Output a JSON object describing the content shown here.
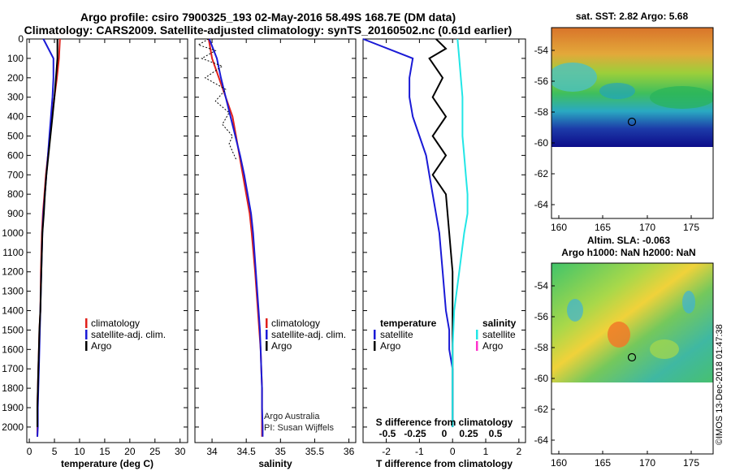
{
  "header": {
    "title_line1": "Argo profile: csiro 7900325_193 02-May-2016 58.49S 168.7E (DM data)",
    "title_line2": "Climatology: CARS2009. Satellite-adjusted climatology: synTS_20160502.nc (0.61d earlier)"
  },
  "colors": {
    "climatology": "#e0201b",
    "satellite": "#1a1ad6",
    "argo": "#000000",
    "salinity_satellite": "#22e6e6",
    "salinity_argo_legend": "#ff33cc"
  },
  "chart_data": [
    {
      "type": "line",
      "panel": "temperature",
      "xlabel": "temperature (deg C)",
      "xlim": [
        -0.5,
        31.5
      ],
      "xticks": [
        0,
        5,
        10,
        15,
        20,
        25,
        30
      ],
      "ylim": [
        0,
        2080
      ],
      "yticks": [
        0,
        100,
        200,
        300,
        400,
        500,
        600,
        700,
        800,
        900,
        1000,
        1100,
        1200,
        1300,
        1400,
        1500,
        1600,
        1700,
        1800,
        1900,
        2000
      ],
      "yreversed": true,
      "legend": [
        "climatology",
        "satellite-adj. clim.",
        "Argo"
      ],
      "series": [
        {
          "name": "climatology",
          "x": [
            6.1,
            5.9,
            5.5,
            5.0,
            4.5,
            4.1,
            3.7,
            3.3,
            3.0,
            2.7,
            2.5,
            2.3,
            2.2,
            2.0,
            1.9,
            1.8,
            1.7,
            1.6,
            1.6,
            1.6
          ],
          "y": [
            0,
            100,
            200,
            300,
            400,
            500,
            600,
            700,
            800,
            900,
            1000,
            1200,
            1400,
            1500,
            1600,
            1700,
            1800,
            1900,
            2000,
            2050
          ]
        },
        {
          "name": "satellite-adj. clim.",
          "x": [
            2.8,
            4.8,
            4.8,
            4.6,
            4.3,
            4.0,
            3.7,
            3.4,
            3.1,
            2.8,
            2.6,
            2.4,
            2.2,
            2.1,
            2.0,
            1.9,
            1.8,
            1.7,
            1.7,
            1.6
          ],
          "y": [
            0,
            100,
            200,
            300,
            400,
            500,
            600,
            700,
            800,
            900,
            1000,
            1200,
            1400,
            1500,
            1600,
            1700,
            1800,
            1900,
            2000,
            2050
          ]
        },
        {
          "name": "Argo",
          "x": [
            5.6,
            5.6,
            5.3,
            5.0,
            4.6,
            4.2,
            3.8,
            3.4,
            3.1,
            2.9,
            2.6,
            2.4,
            2.2,
            2.0,
            1.9,
            1.8,
            1.7,
            1.6,
            1.6
          ],
          "y": [
            0,
            100,
            200,
            300,
            400,
            500,
            600,
            700,
            800,
            900,
            1000,
            1200,
            1400,
            1500,
            1600,
            1700,
            1800,
            1900,
            2000
          ]
        }
      ]
    },
    {
      "type": "line",
      "panel": "salinity",
      "xlabel": "salinity",
      "xlim": [
        33.75,
        36.1
      ],
      "xticks": [
        34,
        34.5,
        35,
        35.5,
        36
      ],
      "ylim": [
        0,
        2080
      ],
      "yreversed": true,
      "legend": [
        "climatology",
        "satellite-adj. clim.",
        "Argo"
      ],
      "annotations": [
        "Argo Australia",
        "PI: Susan Wijffels"
      ],
      "series": [
        {
          "name": "climatology",
          "x": [
            33.95,
            34.0,
            34.1,
            34.2,
            34.3,
            34.35,
            34.4,
            34.45,
            34.5,
            34.55,
            34.58,
            34.63,
            34.67,
            34.69,
            34.71,
            34.72,
            34.73,
            34.73,
            34.73,
            34.73
          ],
          "y": [
            0,
            100,
            200,
            300,
            400,
            500,
            600,
            700,
            800,
            900,
            1000,
            1200,
            1400,
            1500,
            1600,
            1700,
            1800,
            1900,
            2000,
            2050
          ]
        },
        {
          "name": "satellite-adj. clim.",
          "x": [
            33.96,
            34.07,
            34.13,
            34.2,
            34.27,
            34.34,
            34.41,
            34.47,
            34.52,
            34.57,
            34.6,
            34.64,
            34.68,
            34.7,
            34.71,
            34.72,
            34.73,
            34.73,
            34.74,
            34.74
          ],
          "y": [
            0,
            100,
            200,
            300,
            400,
            500,
            600,
            700,
            800,
            900,
            1000,
            1200,
            1400,
            1500,
            1600,
            1700,
            1800,
            1900,
            2000,
            2050
          ]
        },
        {
          "name": "Argo",
          "x": [
            33.95,
            33.8,
            34.05,
            33.85,
            34.15,
            33.9,
            34.2,
            34.05,
            34.25,
            34.15,
            34.3,
            34.25,
            34.3,
            34.35
          ],
          "y": [
            0,
            30,
            60,
            100,
            140,
            200,
            260,
            320,
            380,
            440,
            500,
            540,
            580,
            620
          ]
        }
      ]
    },
    {
      "type": "line",
      "panel": "difference",
      "xlabel": "T difference from climatology",
      "xlim": [
        -2.7,
        2.2
      ],
      "xticks": [
        -2,
        -1,
        0,
        1,
        2
      ],
      "secondary_xlabel": "S difference from climatology",
      "secondary_xticks": [
        "-0.5",
        "-0.25",
        "0",
        "0.25",
        "0.5"
      ],
      "ylim": [
        0,
        2080
      ],
      "yreversed": true,
      "legend_temperature": [
        "satellite",
        "Argo"
      ],
      "legend_salinity": [
        "satellite",
        "Argo"
      ],
      "series": [
        {
          "name": "temperature satellite",
          "x": [
            -3.2,
            -1.2,
            -1.3,
            -1.3,
            -1.2,
            -1.0,
            -0.8,
            -0.7,
            -0.6,
            -0.5,
            -0.4,
            -0.3,
            -0.2,
            -0.1,
            -0.1,
            0.0,
            0.0,
            0.0
          ],
          "y": [
            0,
            100,
            200,
            300,
            400,
            500,
            600,
            700,
            800,
            900,
            1000,
            1200,
            1400,
            1500,
            1600,
            1700,
            1800,
            2000
          ]
        },
        {
          "name": "temperature Argo",
          "x": [
            -0.5,
            -0.2,
            -0.7,
            -0.3,
            -0.6,
            -0.2,
            -0.6,
            -0.2,
            -0.6,
            -0.2,
            -0.1,
            0.0,
            0.0,
            0.0,
            0.0
          ],
          "y": [
            0,
            50,
            100,
            200,
            300,
            400,
            500,
            600,
            700,
            800,
            1000,
            1200,
            1400,
            1600,
            2000
          ]
        },
        {
          "name": "salinity satellite",
          "x": [
            0.15,
            0.2,
            0.25,
            0.3,
            0.3,
            0.3,
            0.35,
            0.4,
            0.45,
            0.45,
            0.35,
            0.2,
            0.05,
            0.0,
            0.0,
            0.0
          ],
          "y": [
            0,
            100,
            200,
            300,
            400,
            500,
            600,
            700,
            800,
            900,
            1000,
            1200,
            1400,
            1600,
            1800,
            2000
          ]
        }
      ]
    }
  ],
  "maps": {
    "sst": {
      "title": "sat. SST: 2.82 Argo: 5.68",
      "lon_ticks": [
        "160",
        "165",
        "170",
        "175"
      ],
      "lat_ticks": [
        "-54",
        "-56",
        "-58",
        "-60",
        "-62",
        "-64"
      ]
    },
    "sla": {
      "title_line1": "Altim. SLA: -0.063",
      "title_line2": "Argo h1000: NaN h2000: NaN",
      "lon_ticks": [
        "160",
        "165",
        "170",
        "175"
      ],
      "lat_ticks": [
        "-54",
        "-56",
        "-58",
        "-60",
        "-62",
        "-64"
      ]
    }
  },
  "legend_labels": {
    "climatology": "climatology",
    "satellite_adj": "satellite-adj. clim.",
    "argo": "Argo",
    "temperature_header": "temperature",
    "salinity_header": "salinity",
    "satellite": "satellite"
  },
  "credit": "©IMOS 13-Dec-2018 01:47:38"
}
